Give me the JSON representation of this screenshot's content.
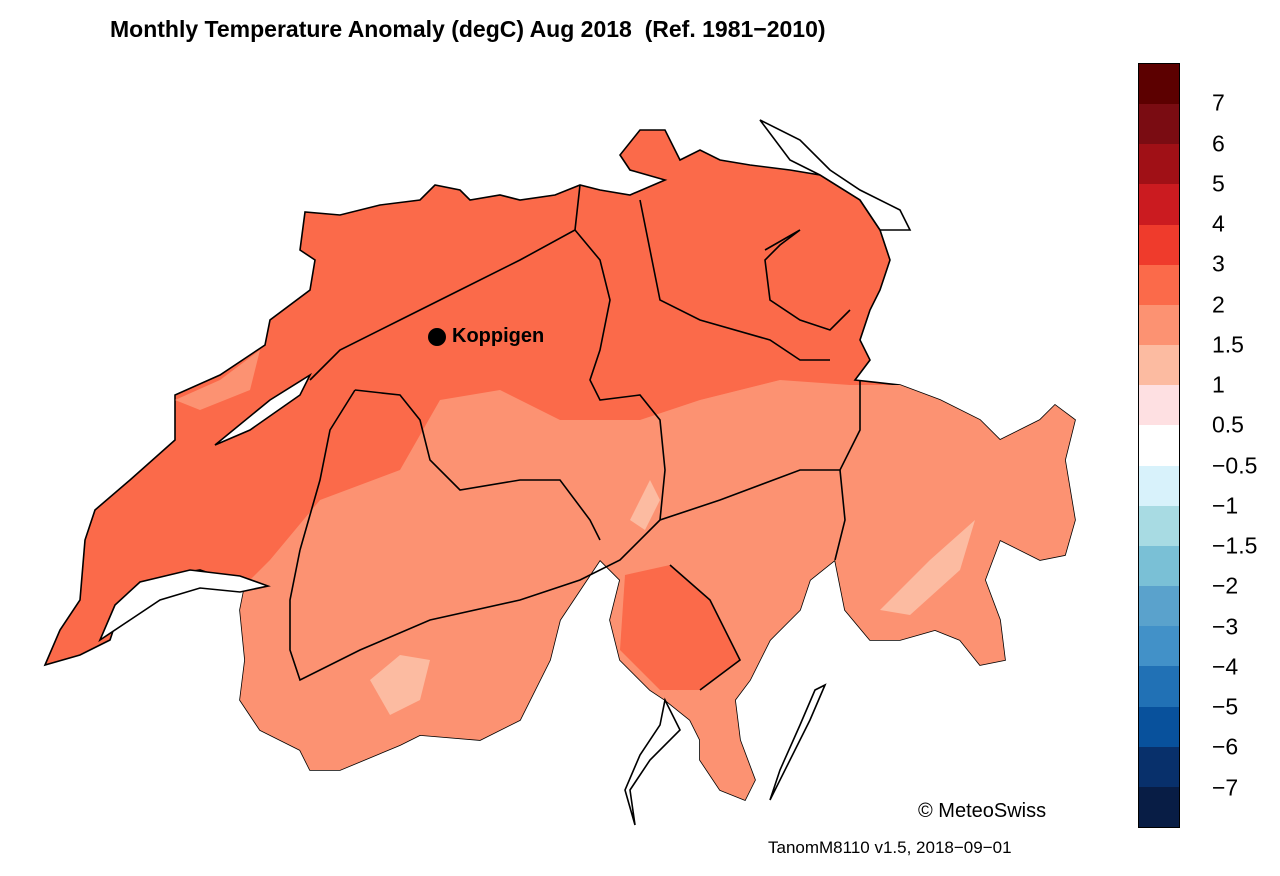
{
  "title": "Monthly Temperature Anomaly (degC) Aug 2018  (Ref. 1981−2010)",
  "station": {
    "name": "Koppigen"
  },
  "colorbar": {
    "colors": [
      "#5c0000",
      "#7a0c12",
      "#a01016",
      "#cb1b20",
      "#ef3b2c",
      "#fb6a4a",
      "#fc9272",
      "#fcbba1",
      "#fee0e2",
      "#ffffff",
      "#d8f2fb",
      "#a8dbe3",
      "#7ac0d6",
      "#5aa2cc",
      "#4291c8",
      "#2171b5",
      "#08519c",
      "#08306b",
      "#081d45"
    ],
    "labels": [
      "7",
      "6",
      "5",
      "4",
      "3",
      "2",
      "1.5",
      "1",
      "0.5",
      "−0.5",
      "−1",
      "−1.5",
      "−2",
      "−3",
      "−4",
      "−5",
      "−6",
      "−7"
    ]
  },
  "map_fill": {
    "dominant": "#fb6a4a",
    "secondary": "#fc9272",
    "light": "#fcbba1"
  },
  "copyright": "© MeteoSwiss",
  "version": "TanomM8110 v1.5, 2018−09−01"
}
